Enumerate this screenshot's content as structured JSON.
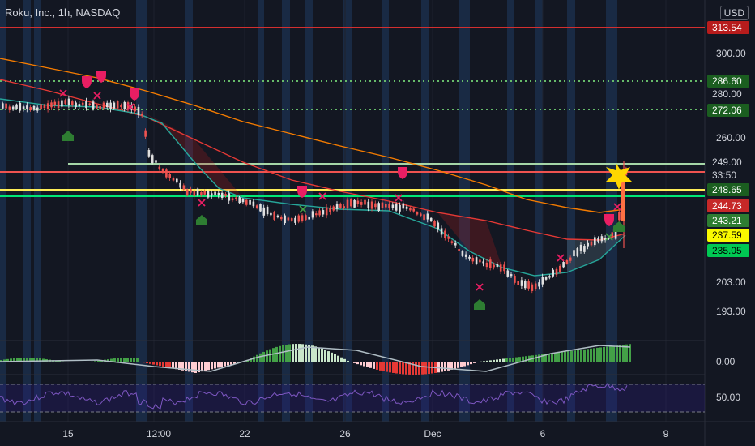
{
  "header": {
    "title": "Roku, Inc., 1h, NASDAQ",
    "currency": "USD"
  },
  "colors": {
    "background": "#131722",
    "up": "#26a69a",
    "down": "#ef5350",
    "grid": "#1e222d",
    "session_band": "#1c3150",
    "ema_orange": "#f57c00",
    "ema_red": "#e53935",
    "ema_teal": "#26a69a"
  },
  "price_axis": {
    "ticks": [
      "300.00",
      "280.00",
      "260.00",
      "203.00",
      "193.00"
    ],
    "badges": [
      {
        "label": "313.54",
        "bg": "#b71c1c",
        "fg": "#ffffff"
      },
      {
        "label": "286.60",
        "bg": "#1b5e20",
        "fg": "#ffffff"
      },
      {
        "label": "280.00",
        "bg": "#131722",
        "fg": "#d1d4dc"
      },
      {
        "label": "272.06",
        "bg": "#1b5e20",
        "fg": "#ffffff"
      },
      {
        "label": "249.00",
        "bg": "#131722",
        "fg": "#d1d4dc"
      },
      {
        "label": "33:50",
        "bg": "#131722",
        "fg": "#d1d4dc"
      },
      {
        "label": "248.65",
        "bg": "#1b5e20",
        "fg": "#ffffff"
      },
      {
        "label": "244.73",
        "bg": "#c62828",
        "fg": "#ffffff"
      },
      {
        "label": "243.21",
        "bg": "#2e7d32",
        "fg": "#ffffff"
      },
      {
        "label": "237.59",
        "bg": "#f9f900",
        "fg": "#000000"
      },
      {
        "label": "235.05",
        "bg": "#00c853",
        "fg": "#000000"
      }
    ]
  },
  "time_axis": {
    "labels": [
      "15",
      "12:00",
      "22",
      "26",
      "Dec",
      "6",
      "9"
    ]
  },
  "macd_pane": {
    "value": "0.00"
  },
  "rsi_pane": {
    "value": "50.00"
  }
}
